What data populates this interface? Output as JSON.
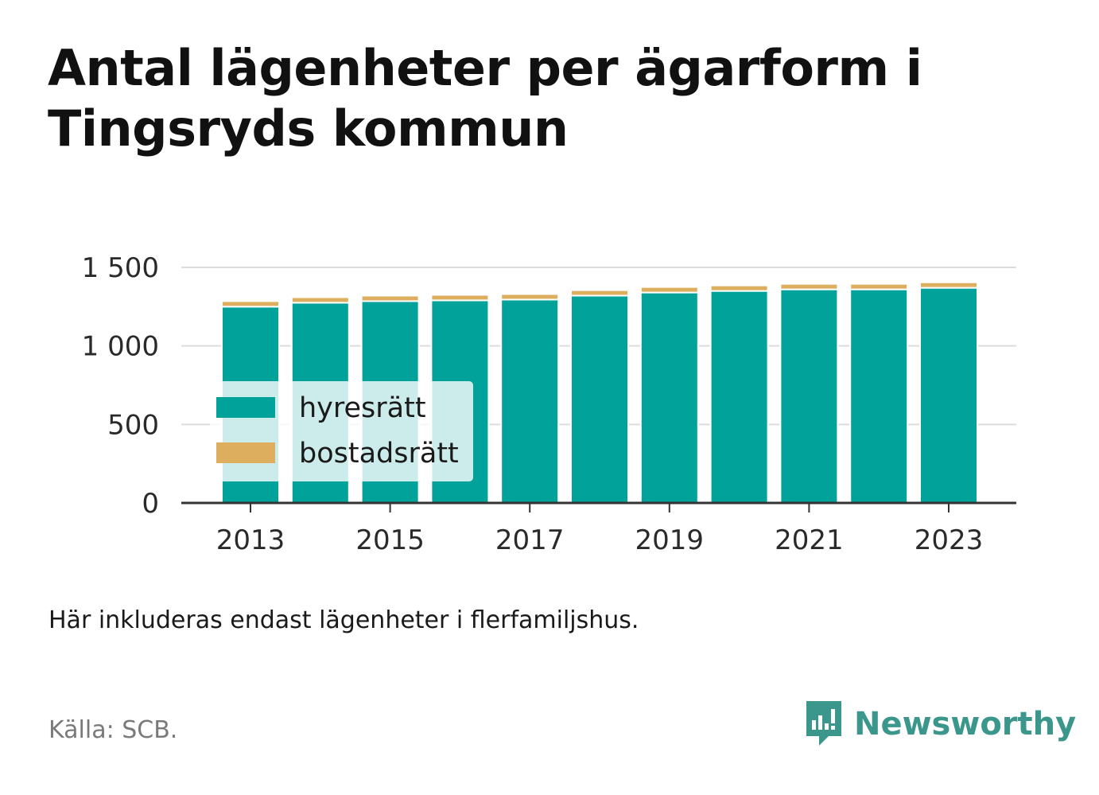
{
  "title": "Antal lägenheter per ägarform i Tingsryds kommun",
  "note": "Här inkluderas endast lägenheter i flerfamiljshus.",
  "source": "Källa: SCB.",
  "brand": {
    "name": "Newsworthy",
    "icon": "newsworthy-logo-icon",
    "color": "#3b978b"
  },
  "chart_data": {
    "type": "bar",
    "stacked": true,
    "x": [
      2013,
      2014,
      2015,
      2016,
      2017,
      2018,
      2019,
      2020,
      2021,
      2022,
      2023
    ],
    "x_tick_labels": [
      "2013",
      "2015",
      "2017",
      "2019",
      "2021",
      "2023"
    ],
    "series": [
      {
        "name": "hyresrätt",
        "color": "#00a29a",
        "values": [
          1250,
          1275,
          1285,
          1290,
          1295,
          1320,
          1340,
          1350,
          1360,
          1360,
          1370
        ]
      },
      {
        "name": "bostadsrätt",
        "color": "#dcae5e",
        "values": [
          35,
          35,
          35,
          35,
          35,
          35,
          35,
          35,
          35,
          35,
          35
        ]
      }
    ],
    "y_ticks": [
      0,
      500,
      1000,
      1500
    ],
    "y_tick_labels": [
      "0",
      "500",
      "1 000",
      "1 500"
    ],
    "ylim": [
      0,
      1500
    ],
    "grid": true,
    "legend_position": "bottom-left-inside",
    "title": "",
    "xlabel": "",
    "ylabel": ""
  }
}
